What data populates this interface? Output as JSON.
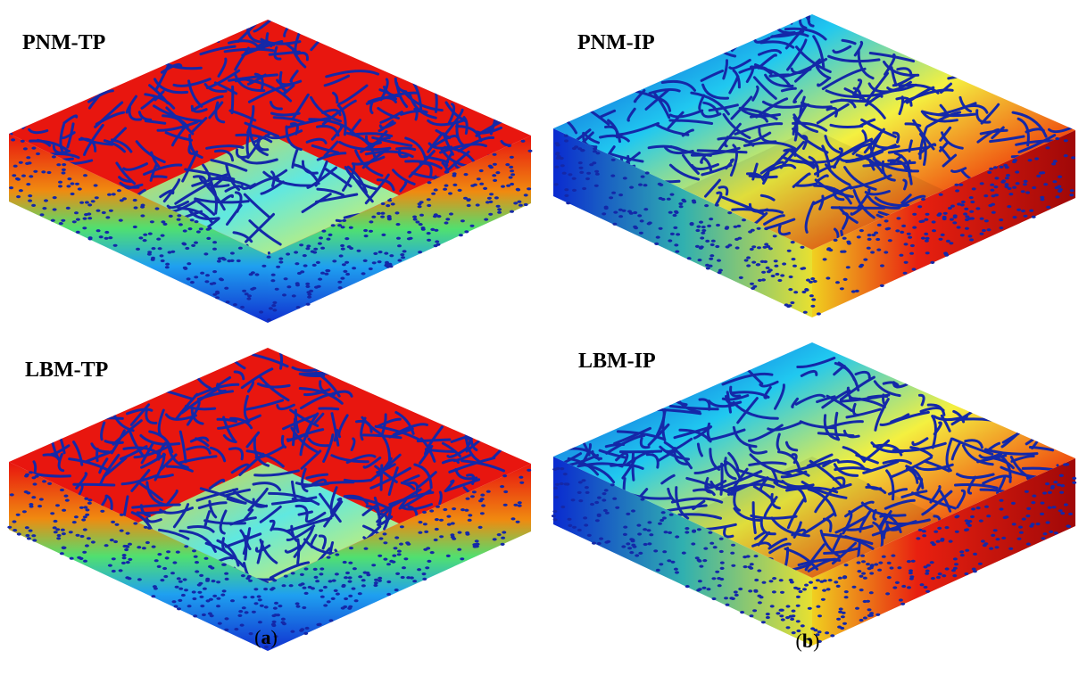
{
  "panels": [
    {
      "label": "PNM-TP"
    },
    {
      "label": "PNM-IP"
    },
    {
      "label": "LBM-TP"
    },
    {
      "label": "LBM-IP"
    }
  ],
  "captions": [
    {
      "open": "(",
      "letter": "a",
      "close": ")"
    },
    {
      "open": "(",
      "letter": "b",
      "close": ")"
    }
  ]
}
